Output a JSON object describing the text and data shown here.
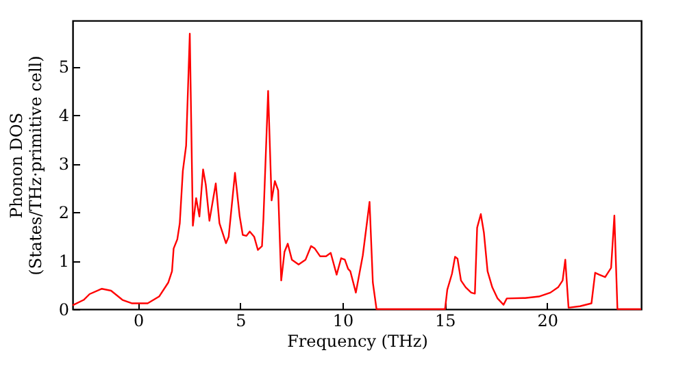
{
  "chart_data": {
    "type": "line",
    "xlabel": "Frequency (THz)",
    "ylabel": "Phonon DOS\n(States/THz·primitive cell)",
    "xlim": [
      -3.2,
      24.6
    ],
    "ylim": [
      0,
      5.95
    ],
    "xticks": [
      0,
      5,
      10,
      15,
      20
    ],
    "yticks": [
      0,
      1,
      2,
      3,
      4,
      5
    ],
    "grid": false,
    "line_style": "solid",
    "marker": "none",
    "x": [
      -3.2,
      -2.66,
      -2.37,
      -1.77,
      -1.32,
      -0.76,
      -0.31,
      0.47,
      1.03,
      1.48,
      1.66,
      1.74,
      1.92,
      2.04,
      2.19,
      2.35,
      2.53,
      2.68,
      2.84,
      3.0,
      3.18,
      3.31,
      3.49,
      3.8,
      3.98,
      4.3,
      4.43,
      4.74,
      4.97,
      5.12,
      5.3,
      5.46,
      5.68,
      5.86,
      6.06,
      6.13,
      6.36,
      6.53,
      6.69,
      6.85,
      7.0,
      7.16,
      7.32,
      7.52,
      7.85,
      8.19,
      8.46,
      8.64,
      8.9,
      9.19,
      9.42,
      9.71,
      9.93,
      10.11,
      10.27,
      10.38,
      10.65,
      10.99,
      11.32,
      11.48,
      11.66,
      15.01,
      15.12,
      15.35,
      15.5,
      15.62,
      15.79,
      16.02,
      16.29,
      16.47,
      16.58,
      16.76,
      16.91,
      17.09,
      17.32,
      17.58,
      17.87,
      18.03,
      18.93,
      19.6,
      20.16,
      20.54,
      20.76,
      20.89,
      21.05,
      21.61,
      22.17,
      22.35,
      22.55,
      22.84,
      23.13,
      23.29,
      23.44,
      24.6
    ],
    "series": [
      {
        "color": "#ff0000",
        "values": [
          0.08,
          0.19,
          0.31,
          0.42,
          0.38,
          0.19,
          0.12,
          0.12,
          0.26,
          0.55,
          0.78,
          1.25,
          1.44,
          1.77,
          2.85,
          3.37,
          5.68,
          1.72,
          2.29,
          1.91,
          2.88,
          2.57,
          1.82,
          2.59,
          1.77,
          1.36,
          1.49,
          2.81,
          1.91,
          1.53,
          1.51,
          1.6,
          1.49,
          1.22,
          1.3,
          1.86,
          4.5,
          2.24,
          2.64,
          2.45,
          0.59,
          1.18,
          1.35,
          1.02,
          0.92,
          1.02,
          1.3,
          1.25,
          1.09,
          1.09,
          1.16,
          0.71,
          1.05,
          1.02,
          0.83,
          0.78,
          0.34,
          1.11,
          2.21,
          0.55,
          0,
          0,
          0.4,
          0.73,
          1.08,
          1.04,
          0.59,
          0.45,
          0.34,
          0.32,
          1.68,
          1.96,
          1.58,
          0.78,
          0.45,
          0.22,
          0.09,
          0.22,
          0.23,
          0.26,
          0.34,
          0.45,
          0.59,
          1.02,
          0.03,
          0.06,
          0.12,
          0.75,
          0.71,
          0.66,
          0.85,
          1.93,
          0,
          0
        ]
      }
    ]
  }
}
